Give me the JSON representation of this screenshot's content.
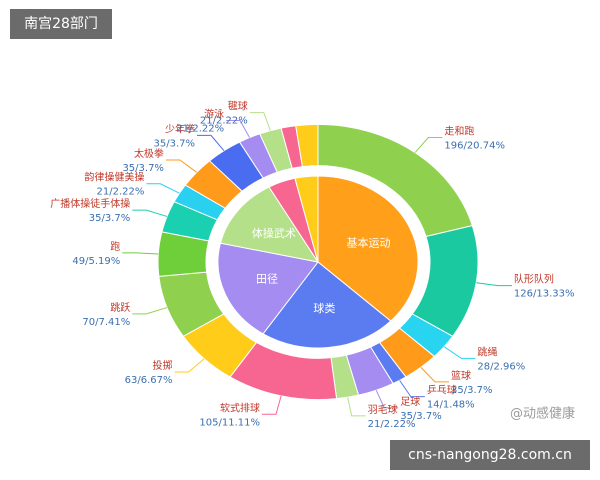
{
  "badge": "南宫28部门",
  "watermark": "@动感健康",
  "footer": "cns-nangong28.com.cn",
  "chart_data": {
    "type": "sunburst",
    "inner": {
      "categories": [
        "基本运动",
        "球类",
        "田径",
        "体操武术",
        null,
        null
      ],
      "values": [
        350,
        210,
        182,
        126,
        42,
        35
      ],
      "colors": [
        "#ff9f1a",
        "#5b7cf0",
        "#a58cf0",
        "#b5e08a",
        "#f76591",
        "#ffcc1a"
      ]
    },
    "outer": {
      "categories": [
        "走和跑",
        "队形队列",
        "跳绳",
        "篮球",
        "乒乓球",
        "足球",
        "羽毛球",
        "软式排球",
        "投掷",
        "跳跃",
        "跑",
        "广播体操徒手体操",
        "韵律操健美操",
        "太极拳",
        "少年拳",
        "游泳",
        "毽球",
        null,
        null
      ],
      "values": [
        196,
        126,
        28,
        35,
        14,
        35,
        21,
        105,
        63,
        70,
        49,
        35,
        21,
        35,
        35,
        21,
        21,
        14,
        21
      ],
      "value_labels": [
        "196/20.74%",
        "126/13.33%",
        "28/2.96%",
        "35/3.7%",
        "14/1.48%",
        "35/3.7%",
        "21/2.22%",
        "105/11.11%",
        "63/6.67%",
        "70/7.41%",
        "49/5.19%",
        "35/3.7%",
        "21/2.22%",
        "35/3.7%",
        "35/3.7%",
        "21/2.22%",
        "21/2.22%",
        "14/1.48%",
        null
      ],
      "colors": [
        "#8fd14f",
        "#1bc9a0",
        "#29d4f0",
        "#ff9a1a",
        "#5b7cf0",
        "#a58cf0",
        "#b5e08a",
        "#f76591",
        "#ffcc1a",
        "#8fd14f",
        "#6fcf3a",
        "#1bd0b0",
        "#2ad0f0",
        "#ff9a1a",
        "#4a6cf0",
        "#a58cf0",
        "#b5e08a",
        "#f76591",
        "#ffcc1a"
      ]
    }
  }
}
